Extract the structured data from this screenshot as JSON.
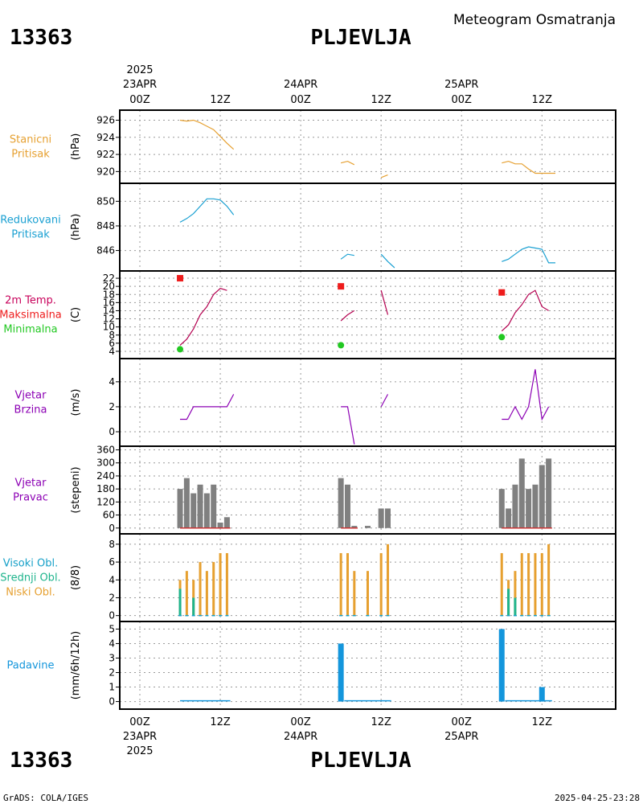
{
  "header": {
    "station_id": "13363",
    "station_name": "PLJEVLJA",
    "product_title": "Meteogram Osmatranja"
  },
  "footer": {
    "credit": "GrADS: COLA/IGES",
    "timestamp": "2025-04-25-23:28"
  },
  "time_axis": {
    "year_label": "2025",
    "days": [
      {
        "date_label": "23APR",
        "hour_label": "00Z",
        "t": 0
      },
      {
        "date_label": "24APR",
        "hour_label": "00Z",
        "t": 24
      },
      {
        "date_label": "25APR",
        "hour_label": "00Z",
        "t": 48
      }
    ],
    "noons": [
      {
        "hour_label": "12Z",
        "t": 12
      },
      {
        "hour_label": "12Z",
        "t": 36
      },
      {
        "hour_label": "12Z",
        "t": 60
      }
    ],
    "x_range": [
      -3,
      71
    ]
  },
  "colors": {
    "pressure_station": "#e6a030",
    "pressure_reduced": "#1aa0d2",
    "temp_label": "#c8005a",
    "temp_line": "#b40050",
    "max_temp": "#ee1c1c",
    "min_temp": "#22c822",
    "wind": "#8c00b4",
    "wind_dir_bar": "#808080",
    "wind_dir_base": "#c83232",
    "cloud_high": "#16a0c8",
    "cloud_mid": "#1eb48c",
    "cloud_low": "#e6a030",
    "precip": "#1496dc",
    "grid": "#9a9a9a"
  },
  "chart_data": [
    {
      "id": "station-pressure",
      "type": "line",
      "side_labels": [
        "Stanicni",
        "Pritisak"
      ],
      "side_color_key": "pressure_station",
      "ylabel": "(hPa)",
      "ylim": [
        919,
        926.8
      ],
      "yticks": [
        920,
        922,
        924,
        926
      ],
      "series": [
        {
          "color_key": "pressure_station",
          "segments": [
            [
              [
                6,
                926
              ],
              [
                7,
                925.9
              ],
              [
                8,
                926
              ],
              [
                9,
                925.7
              ],
              [
                10,
                925.3
              ],
              [
                11,
                924.9
              ],
              [
                12,
                924.1
              ],
              [
                13,
                923.3
              ],
              [
                14,
                922.6
              ]
            ],
            [
              [
                30,
                921.0
              ],
              [
                31,
                921.2
              ],
              [
                32,
                920.8
              ]
            ],
            [
              [
                36,
                919.3
              ],
              [
                37,
                919.6
              ]
            ],
            [
              [
                54,
                921.0
              ],
              [
                55,
                921.2
              ],
              [
                56,
                920.9
              ],
              [
                57,
                920.9
              ],
              [
                58,
                920.3
              ],
              [
                59,
                919.8
              ],
              [
                60,
                919.8
              ],
              [
                61,
                919.8
              ],
              [
                62,
                919.8
              ]
            ]
          ]
        }
      ]
    },
    {
      "id": "reduced-pressure",
      "type": "line",
      "side_labels": [
        "Redukovani",
        "Pritisak"
      ],
      "side_color_key": "pressure_reduced",
      "ylabel": "(hPa)",
      "ylim": [
        844.6,
        851.2
      ],
      "yticks": [
        846,
        848,
        850
      ],
      "series": [
        {
          "color_key": "pressure_reduced",
          "segments": [
            [
              [
                6,
                848.3
              ],
              [
                7,
                848.6
              ],
              [
                8,
                849
              ],
              [
                9,
                849.6
              ],
              [
                10,
                850.2
              ],
              [
                11,
                850.2
              ],
              [
                12,
                850.1
              ],
              [
                13,
                849.6
              ],
              [
                14,
                848.9
              ]
            ],
            [
              [
                30,
                845.3
              ],
              [
                31,
                845.7
              ],
              [
                32,
                845.6
              ]
            ],
            [
              [
                36,
                845.7
              ],
              [
                37,
                845.1
              ],
              [
                38,
                844.6
              ]
            ],
            [
              [
                54,
                845.1
              ],
              [
                55,
                845.3
              ],
              [
                56,
                845.7
              ],
              [
                57,
                846.1
              ],
              [
                58,
                846.3
              ],
              [
                59,
                846.2
              ],
              [
                60,
                846.1
              ],
              [
                61,
                845.0
              ],
              [
                62,
                845.0
              ]
            ]
          ]
        }
      ]
    },
    {
      "id": "temperature",
      "type": "line",
      "side_labels": [
        "2m Temp.",
        "Maksimalna",
        "Minimalna"
      ],
      "side_label_color_keys": [
        "temp_label",
        "max_temp",
        "min_temp"
      ],
      "ylabel": "(C)",
      "ylim": [
        3,
        23
      ],
      "yticks": [
        4,
        6,
        8,
        10,
        12,
        14,
        16,
        18,
        20,
        22
      ],
      "series": [
        {
          "color_key": "temp_line",
          "segments": [
            [
              [
                6,
                5.5
              ],
              [
                7,
                7.0
              ],
              [
                8,
                9.5
              ],
              [
                9,
                13.0
              ],
              [
                10,
                15.0
              ],
              [
                11,
                18.0
              ],
              [
                12,
                19.5
              ],
              [
                13,
                19.0
              ]
            ],
            [
              [
                30,
                11.5
              ],
              [
                31,
                13.0
              ],
              [
                32,
                14.0
              ]
            ],
            [
              [
                36,
                19.0
              ],
              [
                37,
                13.0
              ]
            ],
            [
              [
                54,
                9.0
              ],
              [
                55,
                10.5
              ],
              [
                56,
                13.5
              ],
              [
                57,
                15.5
              ],
              [
                58,
                18.0
              ],
              [
                59,
                19.0
              ],
              [
                60,
                15.0
              ],
              [
                61,
                14.0
              ]
            ]
          ]
        }
      ],
      "maxima": [
        {
          "t": 6,
          "value": 22
        },
        {
          "t": 30,
          "value": 20
        },
        {
          "t": 54,
          "value": 18.5
        }
      ],
      "minima": [
        {
          "t": 6,
          "value": 4.5
        },
        {
          "t": 30,
          "value": 5.5
        },
        {
          "t": 54,
          "value": 7.5
        }
      ]
    },
    {
      "id": "wind-speed",
      "type": "line",
      "side_labels": [
        "Vjetar",
        "Brzina"
      ],
      "side_color_key": "wind",
      "ylabel": "(m/s)",
      "ylim": [
        -0.9,
        5.6
      ],
      "yticks": [
        0,
        2,
        4
      ],
      "series": [
        {
          "color_key": "wind",
          "segments": [
            [
              [
                6,
                1
              ],
              [
                7,
                1
              ],
              [
                8,
                2
              ],
              [
                9,
                2
              ],
              [
                10,
                2
              ],
              [
                11,
                2
              ],
              [
                12,
                2
              ],
              [
                13,
                2
              ],
              [
                14,
                3
              ]
            ],
            [
              [
                30,
                2
              ],
              [
                31,
                2
              ],
              [
                32,
                -1
              ]
            ],
            [
              [
                36,
                2
              ],
              [
                37,
                3
              ]
            ],
            [
              [
                54,
                1
              ],
              [
                55,
                1
              ],
              [
                56,
                2
              ],
              [
                57,
                1
              ],
              [
                58,
                2
              ],
              [
                59,
                5
              ],
              [
                60,
                1
              ],
              [
                61,
                2
              ]
            ]
          ]
        }
      ]
    },
    {
      "id": "wind-direction",
      "type": "bar",
      "side_labels": [
        "Vjetar",
        "Pravac"
      ],
      "side_color_key": "wind",
      "ylabel": "(stepeni)",
      "ylim": [
        -12,
        362
      ],
      "yticks": [
        0,
        60,
        120,
        180,
        240,
        300,
        360
      ],
      "bars": [
        {
          "t": 6,
          "value": 180
        },
        {
          "t": 7,
          "value": 230
        },
        {
          "t": 8,
          "value": 160
        },
        {
          "t": 9,
          "value": 200
        },
        {
          "t": 10,
          "value": 160
        },
        {
          "t": 11,
          "value": 200
        },
        {
          "t": 12,
          "value": 25
        },
        {
          "t": 13,
          "value": 50
        },
        {
          "t": 30,
          "value": 230
        },
        {
          "t": 31,
          "value": 200
        },
        {
          "t": 32,
          "value": 10
        },
        {
          "t": 34,
          "value": 10
        },
        {
          "t": 36,
          "value": 90
        },
        {
          "t": 37,
          "value": 90
        },
        {
          "t": 54,
          "value": 180
        },
        {
          "t": 55,
          "value": 90
        },
        {
          "t": 56,
          "value": 200
        },
        {
          "t": 57,
          "value": 320
        },
        {
          "t": 58,
          "value": 180
        },
        {
          "t": 59,
          "value": 200
        },
        {
          "t": 60,
          "value": 290
        },
        {
          "t": 61,
          "value": 320
        }
      ],
      "base_segments": [
        [
          6,
          13.5
        ],
        [
          30,
          32.5
        ],
        [
          54,
          61.5
        ]
      ]
    },
    {
      "id": "clouds",
      "type": "bar",
      "side_labels": [
        "Visoki Obl.",
        "Srednji Obl.",
        "Niski Obl."
      ],
      "side_label_color_keys": [
        "cloud_high",
        "cloud_mid",
        "cloud_low"
      ],
      "ylabel": "(8/8)",
      "ylim": [
        -0.3,
        8.8
      ],
      "yticks": [
        0,
        2,
        4,
        6,
        8
      ],
      "low": [
        {
          "t": 6,
          "value": 4
        },
        {
          "t": 7,
          "value": 5
        },
        {
          "t": 8,
          "value": 4
        },
        {
          "t": 9,
          "value": 6
        },
        {
          "t": 10,
          "value": 5
        },
        {
          "t": 11,
          "value": 6
        },
        {
          "t": 12,
          "value": 7
        },
        {
          "t": 13,
          "value": 7
        },
        {
          "t": 30,
          "value": 7
        },
        {
          "t": 31,
          "value": 7
        },
        {
          "t": 32,
          "value": 5
        },
        {
          "t": 34,
          "value": 5
        },
        {
          "t": 36,
          "value": 7
        },
        {
          "t": 37,
          "value": 8
        },
        {
          "t": 54,
          "value": 7
        },
        {
          "t": 55,
          "value": 4
        },
        {
          "t": 56,
          "value": 5
        },
        {
          "t": 57,
          "value": 7
        },
        {
          "t": 58,
          "value": 7
        },
        {
          "t": 59,
          "value": 7
        },
        {
          "t": 60,
          "value": 7
        },
        {
          "t": 61,
          "value": 8
        }
      ],
      "mid": [
        {
          "t": 6,
          "value": 3
        },
        {
          "t": 8,
          "value": 2
        },
        {
          "t": 55,
          "value": 3
        },
        {
          "t": 56,
          "value": 2
        }
      ]
    },
    {
      "id": "precipitation",
      "type": "bar",
      "side_labels": [
        "Padavine"
      ],
      "side_color_key": "precip",
      "ylabel": "(mm/6h/12h)",
      "ylim": [
        -0.3,
        5.3
      ],
      "yticks": [
        0,
        1,
        2,
        3,
        4,
        5
      ],
      "bars": [
        {
          "t": 30,
          "value": 4
        },
        {
          "t": 54,
          "value": 5
        },
        {
          "t": 60,
          "value": 1
        }
      ],
      "trace_segments": [
        [
          6,
          13.5
        ],
        [
          30.5,
          37.5
        ],
        [
          54.5,
          61.5
        ]
      ]
    }
  ]
}
